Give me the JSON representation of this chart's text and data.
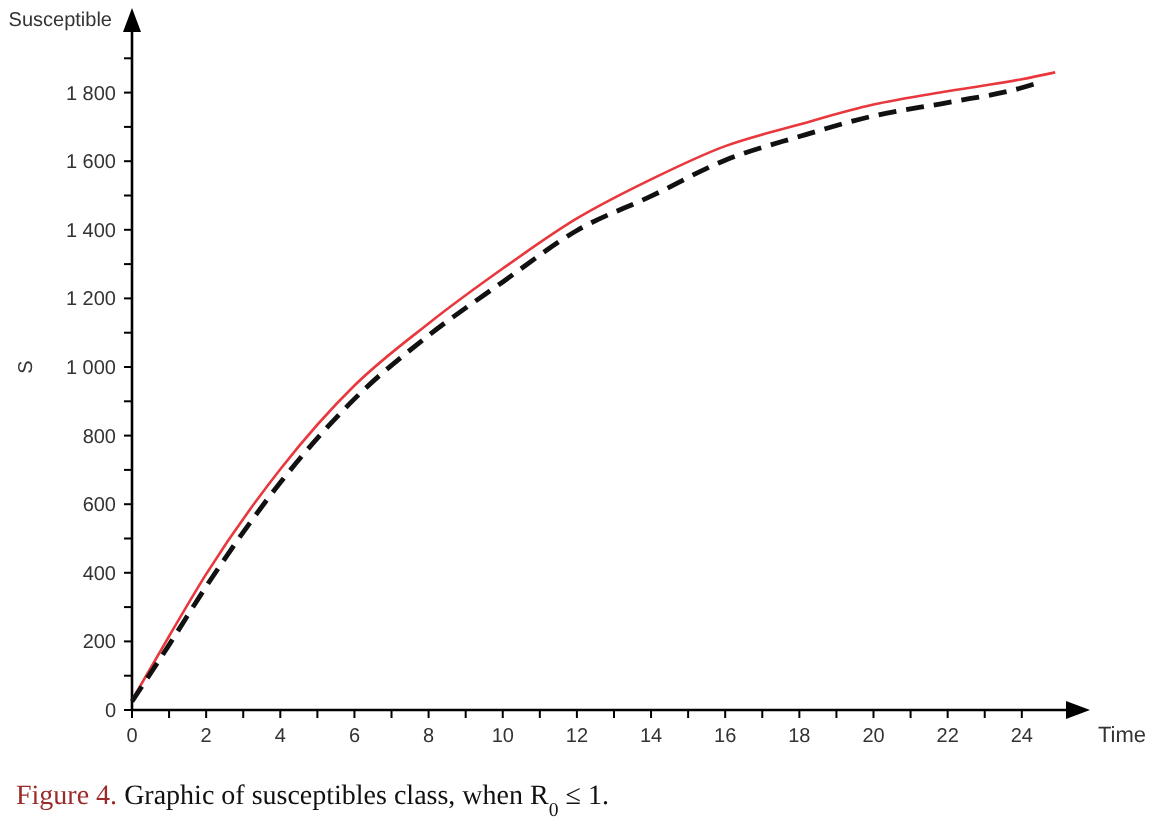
{
  "chart_data": {
    "type": "line",
    "xlabel": "Time",
    "ylabel": "S",
    "xlim": [
      0,
      25.3
    ],
    "ylim": [
      0,
      2000
    ],
    "xticks": [
      0,
      {
        "value": 1,
        "label": null
      },
      2,
      {
        "value": 3,
        "label": null
      },
      4,
      {
        "value": 5,
        "label": null
      },
      6,
      {
        "value": 7,
        "label": null
      },
      8,
      {
        "value": 9,
        "label": null
      },
      10,
      {
        "value": 11,
        "label": null
      },
      12,
      {
        "value": 13,
        "label": null
      },
      14,
      {
        "value": 15,
        "label": null
      },
      16,
      {
        "value": 17,
        "label": null
      },
      18,
      {
        "value": 19,
        "label": null
      },
      20,
      {
        "value": 21,
        "label": null
      },
      22,
      {
        "value": 23,
        "label": null
      },
      24
    ],
    "yticks": [
      0,
      {
        "value": 100,
        "label": null
      },
      200,
      {
        "value": 300,
        "label": null
      },
      400,
      {
        "value": 500,
        "label": null
      },
      600,
      {
        "value": 700,
        "label": null
      },
      800,
      {
        "value": 900,
        "label": null
      },
      {
        "value": 1000,
        "label": "1 000"
      },
      {
        "value": 1100,
        "label": null
      },
      {
        "value": 1200,
        "label": "1 200"
      },
      {
        "value": 1300,
        "label": null
      },
      {
        "value": 1400,
        "label": "1 400"
      },
      {
        "value": 1500,
        "label": null
      },
      {
        "value": 1600,
        "label": "1 600"
      },
      {
        "value": 1700,
        "label": null
      },
      {
        "value": 1800,
        "label": "1 800"
      },
      {
        "value": 1900,
        "label": null
      }
    ],
    "series": [
      {
        "color": "#e8383d",
        "line_style": "solid",
        "x": [
          0,
          1,
          2,
          4,
          6,
          8,
          10,
          12,
          14,
          16,
          18,
          20,
          22,
          24,
          24.9
        ],
        "values": [
          29,
          215,
          396,
          702,
          946,
          1127,
          1287,
          1433,
          1547,
          1644,
          1707,
          1765,
          1804,
          1839,
          1859
        ]
      },
      {
        "color": "#111111",
        "line_style": "dashed",
        "x": [
          0,
          1,
          2,
          4,
          6,
          8,
          10,
          12,
          14,
          16,
          18,
          20,
          22,
          24,
          24.4
        ],
        "values": [
          25,
          190,
          360,
          663,
          907,
          1092,
          1248,
          1398,
          1498,
          1603,
          1672,
          1732,
          1771,
          1814,
          1827
        ]
      }
    ],
    "annotations": [
      "Susceptible",
      "Figure 4.",
      "Graphic of susceptibles class, when R$_{0}$ ≤ 1."
    ]
  }
}
